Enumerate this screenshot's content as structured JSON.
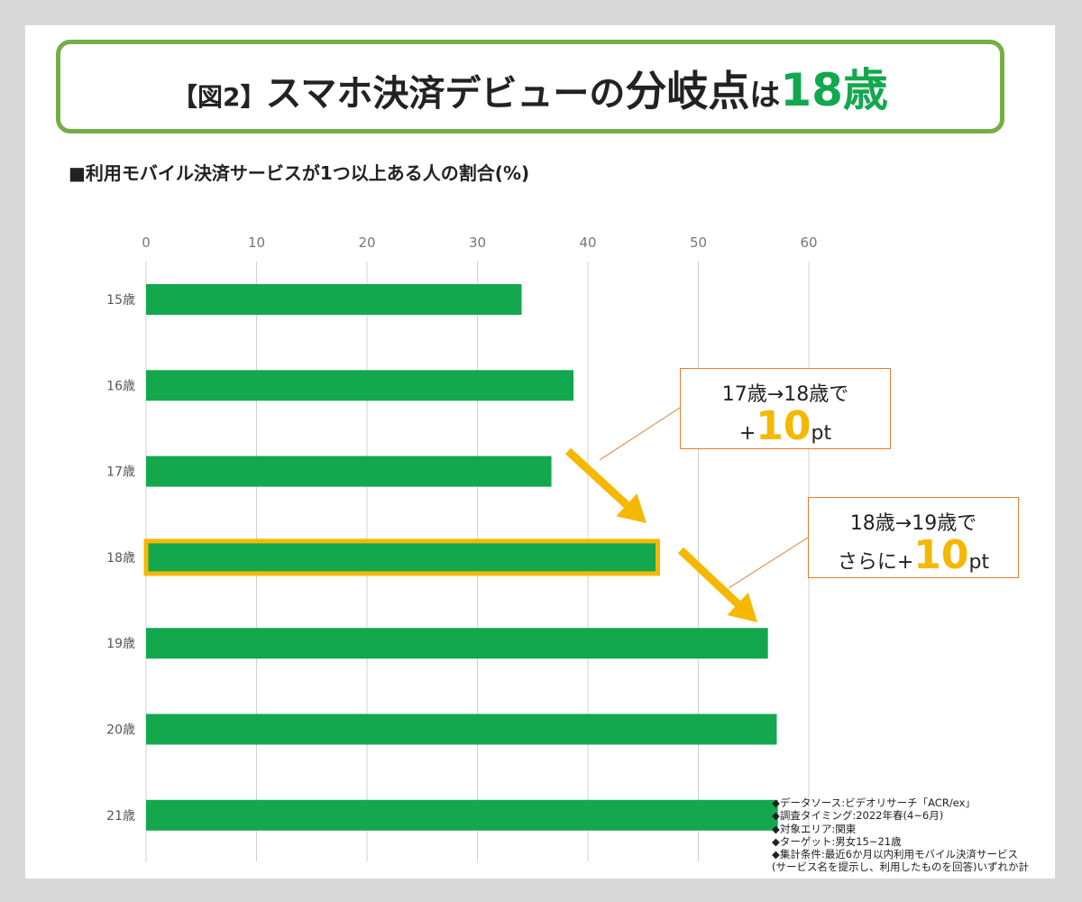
{
  "title": {
    "prefix": "【図2】",
    "main": "スマホ決済デビューの",
    "big": "分岐点",
    "particle": "は",
    "highlight": "18歳"
  },
  "subtitle": "■利用モバイル決済サービスが1つ以上ある人の割合(%)",
  "colors": {
    "bar": "#13a84e",
    "highlight_border": "#f5b800",
    "arrow": "#f5b800",
    "title_border": "#76ae45",
    "callout_border": "#e07f30",
    "grid": "#d0d0d0"
  },
  "chart_data": {
    "type": "bar",
    "orientation": "horizontal",
    "categories": [
      "15歳",
      "16歳",
      "17歳",
      "18歳",
      "19歳",
      "20歳",
      "21歳"
    ],
    "values": [
      34,
      38.7,
      36.7,
      46,
      56.3,
      57.1,
      57.2
    ],
    "highlighted_category": "18歳",
    "xlim": [
      0,
      60
    ],
    "xticks": [
      "0",
      "10",
      "20",
      "30",
      "40",
      "50",
      "60"
    ],
    "x_axis_position": "top",
    "grid": true
  },
  "annotations": [
    {
      "line1": "17歳→18歳で",
      "prefix": "+",
      "number": "10",
      "suffix": "pt"
    },
    {
      "line1": "18歳→19歳で",
      "prefix": "さらに+",
      "number": "10",
      "suffix": "pt"
    }
  ],
  "notes": [
    "◆データソース:ビデオリサーチ「ACR/ex」",
    "◆調査タイミング:2022年春(4~6月)",
    "◆対象エリア:関東",
    "◆ターゲット:男女15~21歳",
    "◆集計条件:最近6か月以内利用モバイル決済サービス",
    "(サービス名を提示し、利用したものを回答)いずれか計"
  ]
}
